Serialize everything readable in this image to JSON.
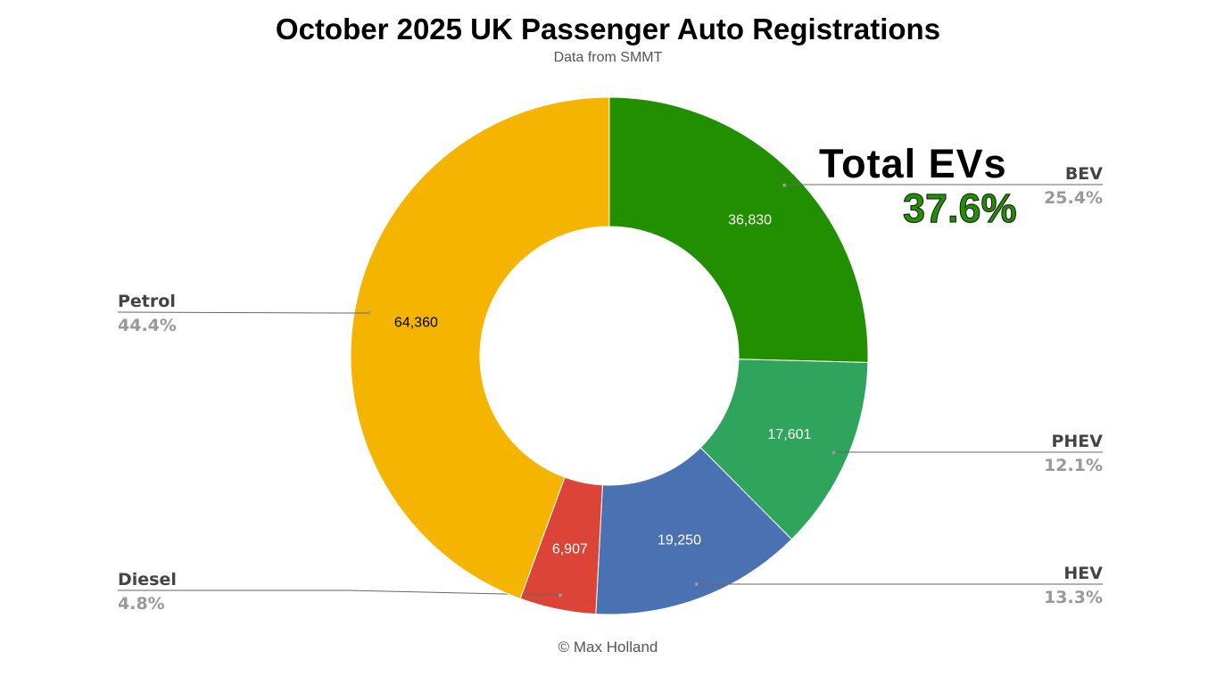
{
  "title": "October 2025 UK Passenger Auto Registrations",
  "subtitle": "Data from SMMT",
  "credit": "© Max Holland",
  "annotation": {
    "label": "Total EVs",
    "value": "37.6%",
    "value_color": "#229000"
  },
  "chart_data": {
    "type": "pie",
    "donut": true,
    "title": "October 2025 UK Passenger Auto Registrations",
    "subtitle": "Data from SMMT",
    "legend": "none",
    "slices": [
      {
        "name": "BEV",
        "value": 36830,
        "value_label": "36,830",
        "percent": "25.4%",
        "color": "#228f00"
      },
      {
        "name": "PHEV",
        "value": 17601,
        "value_label": "17,601",
        "percent": "12.1%",
        "color": "#2fa45c"
      },
      {
        "name": "HEV",
        "value": 19250,
        "value_label": "19,250",
        "percent": "13.3%",
        "color": "#4a71b2"
      },
      {
        "name": "Diesel",
        "value": 6907,
        "value_label": "6,907",
        "percent": "4.8%",
        "color": "#dc4437"
      },
      {
        "name": "Petrol",
        "value": 64360,
        "value_label": "64,360",
        "percent": "44.4%",
        "color": "#f4b400"
      }
    ]
  }
}
